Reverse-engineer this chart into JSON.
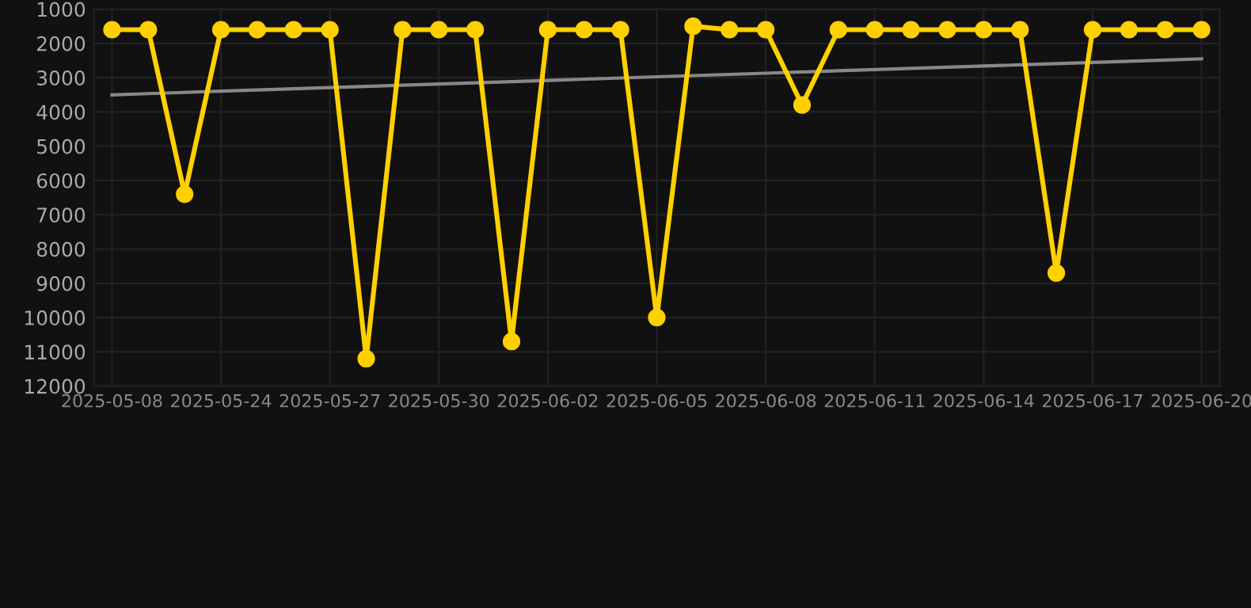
{
  "chart_data": {
    "type": "line",
    "categories": [
      "2025-05-08",
      null,
      null,
      "2025-05-24",
      null,
      null,
      "2025-05-27",
      null,
      null,
      "2025-05-30",
      null,
      null,
      "2025-06-02",
      null,
      null,
      "2025-06-05",
      null,
      null,
      "2025-06-08",
      null,
      null,
      "2025-06-11",
      null,
      null,
      "2025-06-14",
      null,
      null,
      "2025-06-17",
      null,
      null,
      "2025-06-20"
    ],
    "series": [
      {
        "color": "#ffd000",
        "marker": "circle",
        "values": [
          1600,
          1600,
          6400,
          1600,
          1600,
          1600,
          1600,
          11200,
          1600,
          1600,
          1600,
          10700,
          1600,
          1600,
          1600,
          10000,
          1500,
          1600,
          1600,
          3800,
          1600,
          1600,
          1600,
          1600,
          1600,
          1600,
          8700,
          1600,
          1600,
          1600,
          1600
        ]
      },
      {
        "color": "#888888",
        "marker": "none",
        "values": [
          3500,
          3465,
          3430,
          3395,
          3360,
          3325,
          3290,
          3255,
          3220,
          3185,
          3150,
          3115,
          3080,
          3045,
          3010,
          2975,
          2940,
          2905,
          2870,
          2835,
          2800,
          2765,
          2730,
          2695,
          2660,
          2625,
          2590,
          2555,
          2520,
          2485,
          2450
        ]
      }
    ],
    "ylim": [
      12000,
      1000
    ],
    "yticks": [
      1000,
      2000,
      3000,
      4000,
      5000,
      6000,
      7000,
      8000,
      9000,
      10000,
      11000,
      12000
    ],
    "grid": true,
    "line_style": "solid"
  }
}
